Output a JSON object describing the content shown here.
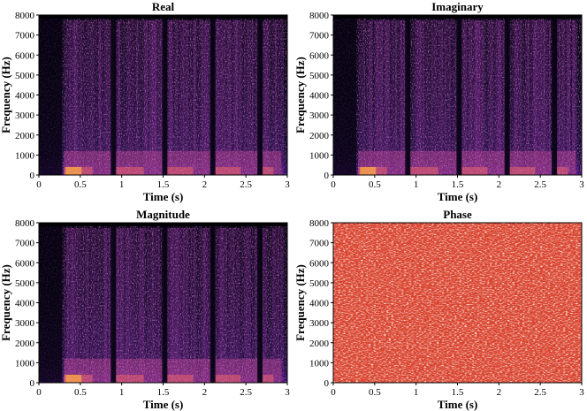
{
  "chart_data": [
    {
      "type": "heatmap",
      "title": "Real",
      "xlabel": "Time (s)",
      "ylabel": "Frequency (Hz)",
      "xlim": [
        0,
        3
      ],
      "ylim": [
        0,
        8000
      ],
      "x_ticks": [
        "0",
        "0.5",
        "1",
        "1.5",
        "2",
        "2.5",
        "3"
      ],
      "y_ticks": [
        "0",
        "1000",
        "2000",
        "3000",
        "4000",
        "5000",
        "6000",
        "7000",
        "8000"
      ],
      "colormap": "magma",
      "speech_onset_s": 0.28,
      "silence_gaps_s": [
        0.9,
        1.52,
        2.1,
        2.67
      ]
    },
    {
      "type": "heatmap",
      "title": "Imaginary",
      "xlabel": "Time (s)",
      "ylabel": "Frequency (Hz)",
      "xlim": [
        0,
        3
      ],
      "ylim": [
        0,
        8000
      ],
      "x_ticks": [
        "0",
        "0.5",
        "1",
        "1.5",
        "2",
        "2.5",
        "3"
      ],
      "y_ticks": [
        "0",
        "1000",
        "2000",
        "3000",
        "4000",
        "5000",
        "6000",
        "7000",
        "8000"
      ],
      "colormap": "magma",
      "speech_onset_s": 0.28,
      "silence_gaps_s": [
        0.9,
        1.52,
        2.1,
        2.67
      ]
    },
    {
      "type": "heatmap",
      "title": "Magnitude",
      "xlabel": "Time (s)",
      "ylabel": "Frequency (Hz)",
      "xlim": [
        0,
        3
      ],
      "ylim": [
        0,
        8000
      ],
      "x_ticks": [
        "0",
        "0.5",
        "1",
        "1.5",
        "2",
        "2.5",
        "3"
      ],
      "y_ticks": [
        "0",
        "1000",
        "2000",
        "3000",
        "4000",
        "5000",
        "6000",
        "7000",
        "8000"
      ],
      "colormap": "magma",
      "speech_onset_s": 0.28,
      "silence_gaps_s": [
        0.9,
        1.52,
        2.1,
        2.67
      ]
    },
    {
      "type": "heatmap",
      "title": "Phase",
      "xlabel": "Time (s)",
      "ylabel": "Frequency (Hz)",
      "xlim": [
        0,
        3
      ],
      "ylim": [
        0,
        8000
      ],
      "x_ticks": [
        "0",
        "0.5",
        "1",
        "1.5",
        "2",
        "2.5",
        "3"
      ],
      "y_ticks": [
        "0",
        "1000",
        "2000",
        "3000",
        "4000",
        "5000",
        "6000",
        "7000",
        "8000"
      ],
      "colormap": "red-white noise"
    }
  ],
  "colors": {
    "spec_low": "#000004",
    "spec_mid": "#721f81",
    "spec_high": "#fcfdbf",
    "phase_base": "#d9432e",
    "phase_light": "#f6d7cf"
  }
}
